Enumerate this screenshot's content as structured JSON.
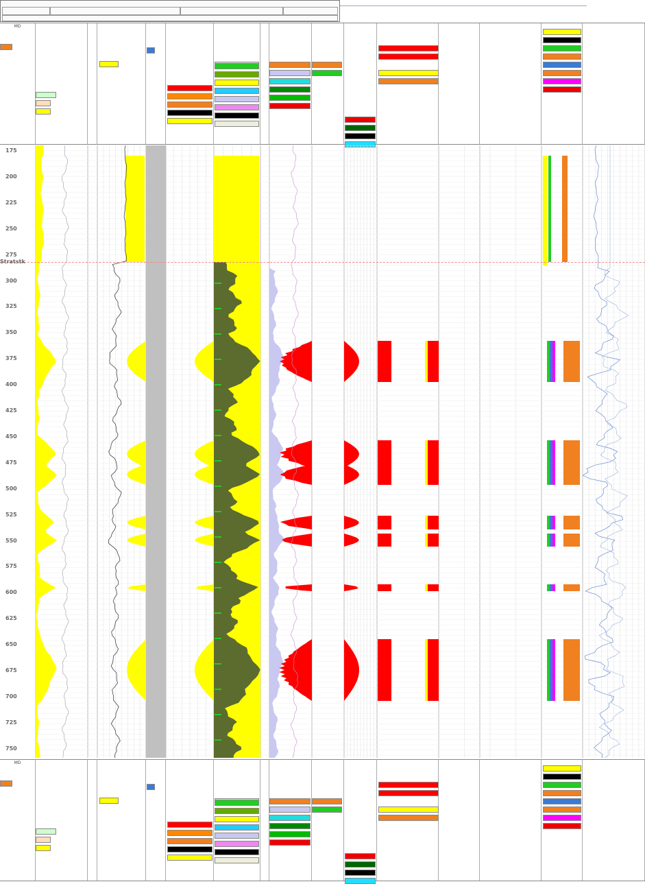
{
  "header": {
    "fine_print": "",
    "well_name": "",
    "field": "",
    "date": "",
    "scale": "",
    "remarks": ""
  },
  "strat_label": "Stratstk",
  "depth_unit": "MD",
  "depths": [
    "175",
    "200",
    "225",
    "250",
    "275",
    "300",
    "325",
    "350",
    "375",
    "400",
    "425",
    "450",
    "475",
    "500",
    "525",
    "550",
    "575",
    "600",
    "625",
    "650",
    "675",
    "700",
    "725",
    "750"
  ],
  "track_titles": [
    "MD",
    "",
    "",
    "",
    "",
    "",
    "",
    "",
    "",
    "",
    "",
    "",
    "",
    "",
    ""
  ],
  "footer_track_titles": [
    "MD",
    "",
    "",
    "",
    "",
    "",
    "",
    "",
    "",
    "",
    "",
    "",
    "",
    "",
    ""
  ],
  "watermark_text": "",
  "colors": {
    "sand": "#ffff00",
    "shale": "#5c6b2e",
    "pay": "#ff0000",
    "orange": "#f08020",
    "lavender": "#c8c8f0",
    "grey": "#c0c0c0",
    "green": "#22cc22",
    "blue": "#3a7bd5"
  }
}
